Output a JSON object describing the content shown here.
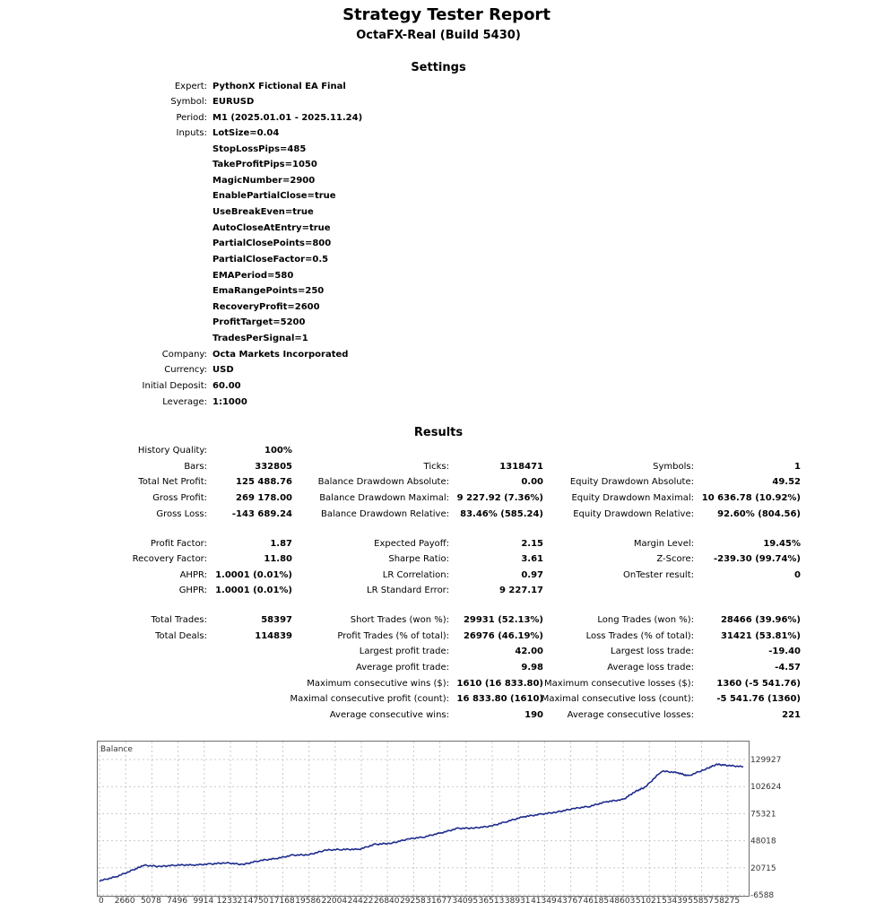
{
  "report": {
    "title": "Strategy Tester Report",
    "subtitle": "OctaFX-Real (Build 5430)"
  },
  "settings": {
    "heading": "Settings",
    "expert_label": "Expert:",
    "expert": "PythonX Fictional EA Final",
    "symbol_label": "Symbol:",
    "symbol": "EURUSD",
    "period_label": "Period:",
    "period": "M1 (2025.01.01 - 2025.11.24)",
    "inputs_label": "Inputs:",
    "inputs": [
      "LotSize=0.04",
      "StopLossPips=485",
      "TakeProfitPips=1050",
      "MagicNumber=2900",
      "EnablePartialClose=true",
      "UseBreakEven=true",
      "AutoCloseAtEntry=true",
      "PartialClosePoints=800",
      "PartialCloseFactor=0.5",
      "EMAPeriod=580",
      "EmaRangePoints=250",
      "RecoveryProfit=2600",
      "ProfitTarget=5200",
      "TradesPerSignal=1"
    ],
    "company_label": "Company:",
    "company": "Octa Markets Incorporated",
    "currency_label": "Currency:",
    "currency": "USD",
    "deposit_label": "Initial Deposit:",
    "deposit": "60.00",
    "leverage_label": "Leverage:",
    "leverage": "1:1000"
  },
  "results": {
    "heading": "Results",
    "history_quality": {
      "label": "History Quality:",
      "value": "100%"
    },
    "rows": [
      [
        {
          "label": "Bars:",
          "value": "332805"
        },
        {
          "label": "Ticks:",
          "value": "1318471"
        },
        {
          "label": "Symbols:",
          "value": "1"
        }
      ],
      [
        {
          "label": "Total Net Profit:",
          "value": "125 488.76"
        },
        {
          "label": "Balance Drawdown Absolute:",
          "value": "0.00"
        },
        {
          "label": "Equity Drawdown Absolute:",
          "value": "49.52"
        }
      ],
      [
        {
          "label": "Gross Profit:",
          "value": "269 178.00"
        },
        {
          "label": "Balance Drawdown Maximal:",
          "value": "9 227.92 (7.36%)"
        },
        {
          "label": "Equity Drawdown Maximal:",
          "value": "10 636.78 (10.92%)"
        }
      ],
      [
        {
          "label": "Gross Loss:",
          "value": "-143 689.24"
        },
        {
          "label": "Balance Drawdown Relative:",
          "value": "83.46% (585.24)"
        },
        {
          "label": "Equity Drawdown Relative:",
          "value": "92.60% (804.56)"
        }
      ],
      [
        {
          "label": "Profit Factor:",
          "value": "1.87"
        },
        {
          "label": "Expected Payoff:",
          "value": "2.15"
        },
        {
          "label": "Margin Level:",
          "value": "19.45%"
        }
      ],
      [
        {
          "label": "Recovery Factor:",
          "value": "11.80"
        },
        {
          "label": "Sharpe Ratio:",
          "value": "3.61"
        },
        {
          "label": "Z-Score:",
          "value": "-239.30 (99.74%)"
        }
      ],
      [
        {
          "label": "AHPR:",
          "value": "1.0001 (0.01%)"
        },
        {
          "label": "LR Correlation:",
          "value": "0.97"
        },
        {
          "label": "OnTester result:",
          "value": "0"
        }
      ],
      [
        {
          "label": "GHPR:",
          "value": "1.0001 (0.01%)"
        },
        {
          "label": "LR Standard Error:",
          "value": "9 227.17"
        },
        null
      ],
      [
        {
          "label": "Total Trades:",
          "value": "58397"
        },
        {
          "label": "Short Trades (won %):",
          "value": "29931 (52.13%)"
        },
        {
          "label": "Long Trades (won %):",
          "value": "28466 (39.96%)"
        }
      ],
      [
        {
          "label": "Total Deals:",
          "value": "114839"
        },
        {
          "label": "Profit Trades (% of total):",
          "value": "26976 (46.19%)"
        },
        {
          "label": "Loss Trades (% of total):",
          "value": "31421 (53.81%)"
        }
      ],
      [
        null,
        {
          "label": "Largest profit trade:",
          "value": "42.00"
        },
        {
          "label": "Largest loss trade:",
          "value": "-19.40"
        }
      ],
      [
        null,
        {
          "label": "Average profit trade:",
          "value": "9.98"
        },
        {
          "label": "Average loss trade:",
          "value": "-4.57"
        }
      ],
      [
        null,
        {
          "label": "Maximum consecutive wins ($):",
          "value": "1610 (16 833.80)"
        },
        {
          "label": "Maximum consecutive losses ($):",
          "value": "1360 (-5 541.76)"
        }
      ],
      [
        null,
        {
          "label": "Maximal consecutive profit (count):",
          "value": "16 833.80 (1610)"
        },
        {
          "label": "Maximal consecutive loss (count):",
          "value": "-5 541.76 (1360)"
        }
      ],
      [
        null,
        {
          "label": "Average consecutive wins:",
          "value": "190"
        },
        {
          "label": "Average consecutive losses:",
          "value": "221"
        }
      ]
    ]
  },
  "chart_data": {
    "type": "line",
    "title": "Balance",
    "xlabel": "",
    "ylabel": "",
    "x_ticks": [
      "0",
      "2660",
      "5078",
      "7496",
      "9914",
      "12332",
      "14750",
      "17168",
      "19586",
      "22004",
      "24422",
      "26840",
      "29258",
      "31677",
      "34095",
      "36513",
      "38931",
      "41349",
      "43767",
      "46185",
      "48603",
      "51021",
      "53439",
      "55857",
      "58275"
    ],
    "y_ticks": [
      "129927",
      "102624",
      "75321",
      "48018",
      "20715",
      "-6588"
    ],
    "xlim": [
      0,
      58397
    ],
    "ylim": [
      -6588,
      129927
    ],
    "grid": true,
    "line_color": "#1c2a8c",
    "series": [
      {
        "x": [
          0,
          1500,
          3000,
          4000,
          5500,
          7000,
          8500,
          10000,
          11500,
          13000,
          14500,
          16000,
          17500,
          19000,
          20500,
          22000,
          23500,
          25000,
          26500,
          28000,
          29500,
          31000,
          32500,
          34000,
          35500,
          37000,
          38500,
          40000,
          41500,
          43000,
          44500,
          46000,
          47500,
          48600,
          49500,
          51000,
          52500,
          53400,
          55000,
          56000,
          57000,
          58397
        ],
        "y": [
          7600,
          11700,
          18200,
          23300,
          22000,
          23600,
          23500,
          24500,
          25800,
          24000,
          28000,
          30000,
          33400,
          33900,
          38500,
          39300,
          39300,
          44300,
          45600,
          49700,
          52000,
          56000,
          60400,
          60900,
          62700,
          67600,
          72300,
          74600,
          77000,
          80400,
          82900,
          87400,
          89500,
          97700,
          102000,
          118300,
          116500,
          113300,
          120400,
          125000,
          124000,
          122500
        ]
      }
    ]
  }
}
